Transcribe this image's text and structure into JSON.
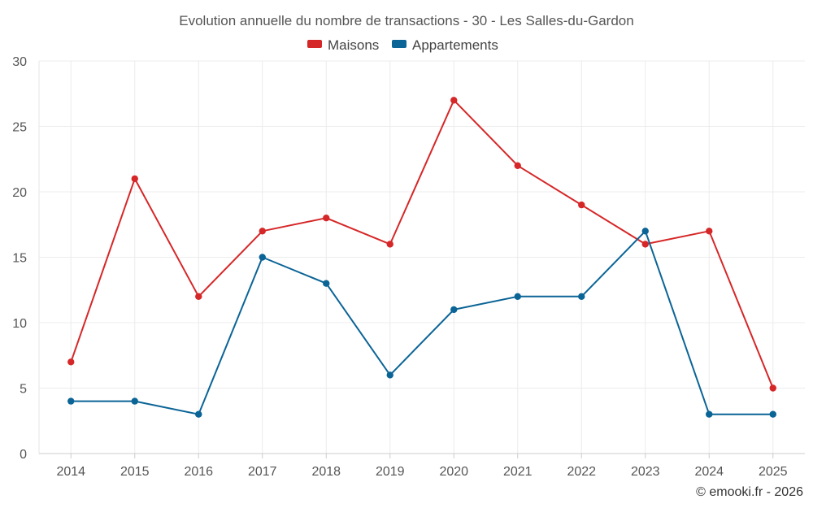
{
  "chart_data": {
    "type": "line",
    "title": "Evolution annuelle du nombre de transactions - 30 - Les Salles-du-Gardon",
    "categories": [
      "2014",
      "2015",
      "2016",
      "2017",
      "2018",
      "2019",
      "2020",
      "2021",
      "2022",
      "2023",
      "2024",
      "2025"
    ],
    "series": [
      {
        "name": "Maisons",
        "color": "#d62728",
        "values": [
          7,
          21,
          12,
          17,
          18,
          16,
          27,
          22,
          19,
          16,
          17,
          5
        ]
      },
      {
        "name": "Appartements",
        "color": "#0b6496",
        "values": [
          4,
          4,
          3,
          15,
          13,
          6,
          11,
          12,
          12,
          17,
          3,
          3
        ]
      }
    ],
    "ylim": [
      0,
      30
    ],
    "yticks": [
      0,
      5,
      10,
      15,
      20,
      25,
      30
    ],
    "ytick_labels": [
      "0",
      "5",
      "10",
      "15",
      "20",
      "25",
      "30"
    ],
    "grid": true,
    "legend": "top-center",
    "xlabel": "",
    "ylabel": ""
  },
  "credit": "© emooki.fr - 2026"
}
